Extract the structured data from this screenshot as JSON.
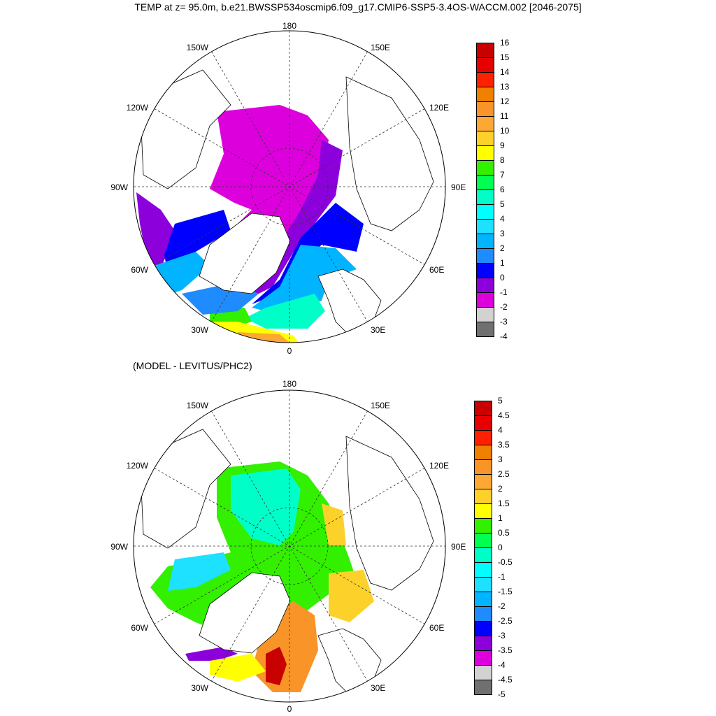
{
  "title": "TEMP at z=  95.0m, b.e21.BWSSP534oscmip6.f09_g17.CMIP6-SSP5-3.4OS-WACCM.002 [2046-2075]",
  "subtitle": "(MODEL - LEVITUS/PHC2)",
  "lon_labels": {
    "top": "180",
    "bottom": "0",
    "left": "90W",
    "right": "90E",
    "ul1": "150W",
    "ul2": "120W",
    "ur1": "150E",
    "ur2": "120E",
    "ll1": "60W",
    "ll2": "30W",
    "lr1": "60E",
    "lr2": "30E"
  },
  "colorbar_top": {
    "labels": [
      "16",
      "15",
      "14",
      "13",
      "12",
      "11",
      "10",
      "9",
      "8",
      "7",
      "6",
      "5",
      "4",
      "3",
      "2",
      "1",
      "0",
      "-1",
      "-2",
      "-3",
      "-4"
    ],
    "colors": [
      "#c80000",
      "#e60000",
      "#ff2000",
      "#f08000",
      "#f89428",
      "#fca832",
      "#fcd22a",
      "#ffff00",
      "#32f000",
      "#00ff50",
      "#00ffc8",
      "#00ffff",
      "#1ee0ff",
      "#00b4ff",
      "#1e8cff",
      "#0000ff",
      "#8c00dc",
      "#dc00dc",
      "#d2d2d2",
      "#707070"
    ]
  },
  "colorbar_bottom": {
    "labels": [
      "5",
      "4.5",
      "4",
      "3.5",
      "3",
      "2.5",
      "2",
      "1.5",
      "1",
      "0.5",
      "0",
      "-0.5",
      "-1",
      "-1.5",
      "-2",
      "-2.5",
      "-3",
      "-3.5",
      "-4",
      "-4.5",
      "-5"
    ],
    "colors": [
      "#c80000",
      "#e60000",
      "#ff2000",
      "#f08000",
      "#f89428",
      "#fca832",
      "#fcd22a",
      "#ffff00",
      "#32f000",
      "#00ff50",
      "#00ffc8",
      "#00ffff",
      "#1ee0ff",
      "#00b4ff",
      "#1e8cff",
      "#0000ff",
      "#8c00dc",
      "#dc00dc",
      "#d2d2d2",
      "#707070"
    ]
  }
}
